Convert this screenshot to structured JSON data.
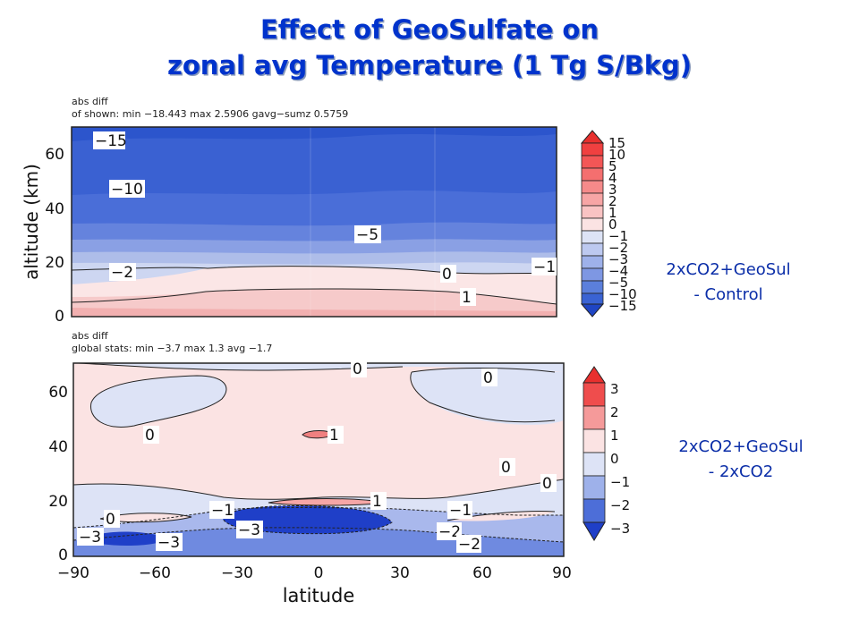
{
  "title_line1": "Effect of GeoSulfate on",
  "title_line2": "zonal avg Temperature (1 Tg S/Bkg)",
  "top_panel": {
    "header1": "abs diff",
    "header2": "of shown:  min −18.443 max 2.5906  gavg−sumz 0.5759",
    "ylabel": "altitude (km)",
    "yticks": [
      "0",
      "20",
      "40",
      "60"
    ],
    "contour_labels": [
      "−15",
      "−10",
      "−5",
      "−2",
      "0",
      "1",
      "−1"
    ],
    "colorbar_labels": [
      "15",
      "10",
      "5",
      "4",
      "3",
      "2",
      "1",
      "0",
      "−1",
      "−2",
      "−3",
      "−4",
      "−5",
      "−10",
      "−15"
    ],
    "side_label_line1": "2xCO2+GeoSul",
    "side_label_line2": "- Control"
  },
  "bottom_panel": {
    "header1": "abs diff",
    "header2": "global stats:  min −3.7 max 1.3  avg −1.7",
    "yticks": [
      "0",
      "20",
      "40",
      "60"
    ],
    "xticks": [
      "−90",
      "−60",
      "−30",
      "0",
      "30",
      "60",
      "90"
    ],
    "xlabel": "latitude",
    "contour_labels": [
      "0",
      "0",
      "0",
      "1",
      "0",
      "0",
      "−1",
      "1",
      "0",
      "−1",
      "−3",
      "−3",
      "−3",
      "−2",
      "−2"
    ],
    "colorbar_labels": [
      "3",
      "2",
      "1",
      "0",
      "−1",
      "−2",
      "−3"
    ],
    "side_label_line1": "2xCO2+GeoSul",
    "side_label_line2": "-  2xCO2"
  },
  "colors": {
    "title": "#0033cc",
    "side_label": "#0b2ea8",
    "deep_blue": "#2a52c8",
    "mid_blue": "#5b7fdc",
    "light_blue": "#dde3f6",
    "light_pink": "#fbe3e3",
    "red": "#e53030"
  },
  "chart_data": [
    {
      "type": "heatmap",
      "title": "",
      "ylabel": "altitude (km)",
      "xlabel": "",
      "ylim": [
        0,
        70
      ],
      "stats": {
        "min": -18.443,
        "max": 2.5906,
        "gavg_minus_sumz": 0.5759
      },
      "levels": [
        -15,
        -10,
        -5,
        -4,
        -3,
        -2,
        -1,
        0,
        1,
        2,
        3,
        4,
        5,
        10,
        15
      ],
      "labeled_contours": [
        {
          "label": "−15"
        },
        {
          "label": "−10"
        },
        {
          "label": "−5"
        },
        {
          "label": "−2"
        },
        {
          "label": "0"
        },
        {
          "label": "1"
        },
        {
          "label": "−1"
        }
      ]
    },
    {
      "type": "heatmap",
      "title": "",
      "xlabel": "latitude",
      "ylabel": "",
      "xlim": [
        -90,
        90
      ],
      "ylim": [
        0,
        70
      ],
      "stats": {
        "min": -3.7,
        "max": 1.3,
        "avg": -1.7
      },
      "levels": [
        -3,
        -2,
        -1,
        0,
        1,
        2,
        3
      ],
      "labeled_contours": [
        {
          "label": "0"
        },
        {
          "label": "1"
        },
        {
          "label": "−1"
        },
        {
          "label": "−2"
        },
        {
          "label": "−3"
        }
      ]
    }
  ]
}
